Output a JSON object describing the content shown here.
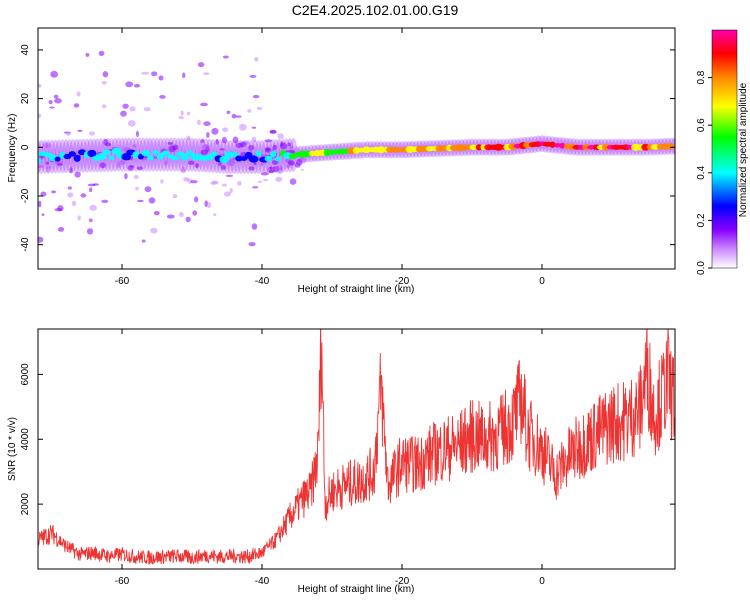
{
  "title": "C2E4.2025.102.01.00.G19",
  "chart_data": [
    {
      "type": "heatmap",
      "xlabel": "Height of straight line (km)",
      "ylabel": "Frequency (Hz)",
      "xlim": [
        -72,
        19
      ],
      "ylim": [
        -50,
        49
      ],
      "x_ticks": [
        -60,
        -40,
        -20,
        0
      ],
      "y_ticks": [
        -40,
        -20,
        0,
        20,
        40
      ],
      "x_tick_labels": [
        "-60",
        "-40",
        "-20",
        "0"
      ],
      "y_tick_labels": [
        "-40",
        "-20",
        "0",
        "20",
        "40"
      ],
      "colorbar": {
        "label": "Normalized spectral amplitude",
        "range": [
          0,
          1
        ],
        "ticks": [
          0.0,
          0.2,
          0.4,
          0.6,
          0.8
        ],
        "tick_labels": [
          "0.0",
          "0.2",
          "0.4",
          "0.6",
          "0.8"
        ],
        "colors": [
          "#ffffff",
          "#cc88ff",
          "#8800ff",
          "#0000ff",
          "#00ffff",
          "#00ff00",
          "#ffff00",
          "#ff8800",
          "#ff0000",
          "#ff00aa"
        ]
      },
      "ridge": {
        "x": [
          -72,
          -60,
          -50,
          -45,
          -40,
          -35,
          -30,
          -25,
          -20,
          -15,
          -10,
          -5,
          0,
          5,
          10,
          15,
          19
        ],
        "frequency": [
          -4,
          -3,
          -3,
          -4,
          -4,
          -3,
          -2,
          -1,
          -1,
          -0.5,
          0,
          0,
          1.5,
          0,
          0,
          0,
          0.5
        ],
        "amplitude": [
          0.3,
          0.3,
          0.35,
          0.3,
          0.3,
          0.5,
          0.6,
          0.7,
          0.75,
          0.75,
          0.8,
          0.85,
          0.9,
          0.85,
          0.85,
          0.85,
          0.8
        ]
      },
      "grid": false
    },
    {
      "type": "line",
      "xlabel": "Height of straight line (km)",
      "ylabel": "SNR (10 * v/v)",
      "xlim": [
        -72,
        19
      ],
      "ylim": [
        0,
        7400
      ],
      "x_ticks": [
        -60,
        -40,
        -20,
        0
      ],
      "y_ticks": [
        2000,
        4000,
        6000
      ],
      "x_tick_labels": [
        "-60",
        "-40",
        "-20",
        "0"
      ],
      "y_tick_labels": [
        "2000",
        "4000",
        "6000"
      ],
      "color": "#ee3333",
      "series": [
        {
          "x": [
            -72,
            -70,
            -68,
            -66,
            -64,
            -62,
            -60,
            -58,
            -56,
            -54,
            -52,
            -50,
            -48,
            -46,
            -44,
            -42,
            -40,
            -38,
            -36,
            -34,
            -33,
            -32,
            -31.5,
            -31,
            -30,
            -28,
            -26,
            -24,
            -23,
            -22,
            -20,
            -18,
            -16,
            -14,
            -12,
            -10,
            -8,
            -6,
            -4,
            -3,
            -2,
            0,
            2,
            4,
            6,
            8,
            10,
            12,
            14,
            15,
            16,
            17,
            18,
            19
          ],
          "y": [
            900,
            1100,
            700,
            450,
            500,
            400,
            450,
            380,
            350,
            380,
            400,
            350,
            420,
            380,
            400,
            380,
            500,
            900,
            1600,
            2200,
            2400,
            3500,
            7300,
            2000,
            2400,
            2600,
            2700,
            3000,
            5600,
            2600,
            3300,
            3200,
            3500,
            3700,
            3800,
            4100,
            4000,
            4200,
            4600,
            5300,
            4200,
            3700,
            2900,
            3500,
            3900,
            4200,
            4500,
            4600,
            4900,
            6200,
            4800,
            5200,
            5900,
            5000
          ]
        }
      ],
      "grid": false
    }
  ]
}
